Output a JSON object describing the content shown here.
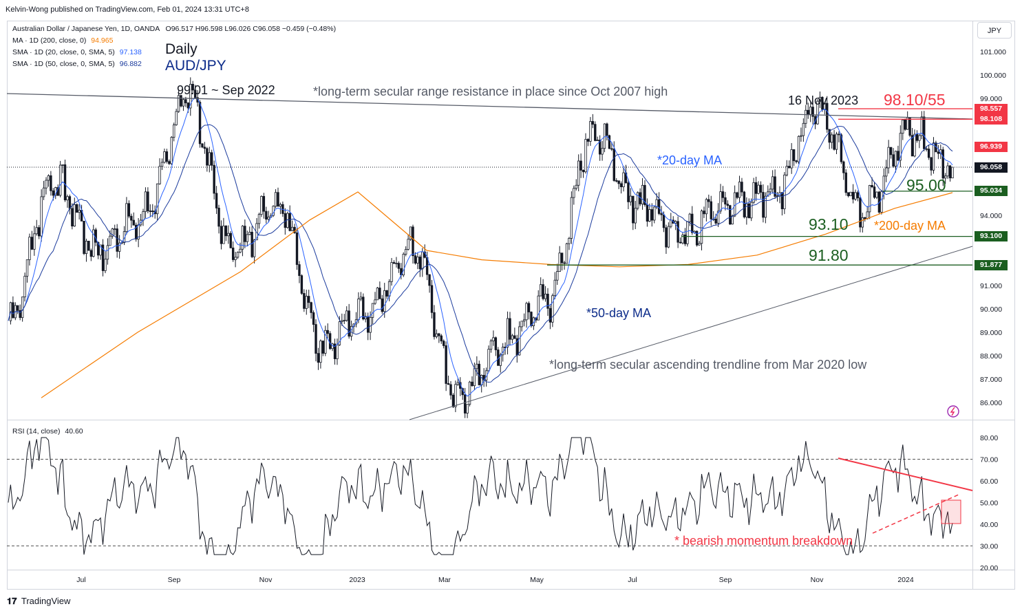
{
  "header": {
    "published_by": "Kelvin-Wong published on TradingView.com, Feb 01, 2024 13:31 UTC+8"
  },
  "legend": {
    "symbol_line": "Australian Dollar / Japanese Yen, 1D, OANDA",
    "ohlc": "O96.517  H96.598  L96.026  C96.058  −0.459 (−0.48%)",
    "ma200_label": "MA · 1D (200, close, 0)",
    "ma200_value": "94.965",
    "sma20_label": "SMA · 1D (20, close, 0, SMA, 5)",
    "sma20_value": "97.138",
    "sma50_label": "SMA · 1D (50, close, 0, SMA, 5)",
    "sma50_value": "96.882",
    "rsi_label": "RSI (14, close)",
    "rsi_value": "40.60"
  },
  "titles": {
    "timeframe": "Daily",
    "pair": "AUD/JPY"
  },
  "annotations": {
    "sep_2022_high": "99.01 ~ Sep 2022",
    "resistance_note": "*long-term secular range resistance in place since Oct 2007 high",
    "nov_2023": "16 Nov 2023",
    "level_9810": "98.10/55",
    "ma20_note": "*20-day MA",
    "level_9500": "95.00",
    "level_9310": "93.10",
    "ma200_note": "*200-day MA",
    "level_9180": "91.80",
    "ma50_note": "*50-day MA",
    "trendline_note": "*long-term secular ascending trendline from Mar 2020 low",
    "rsi_note": "* bearish momentum breakdown"
  },
  "price_axis": {
    "currency": "JPY",
    "ticks": [
      "101.000",
      "100.000",
      "99.000",
      "98.000",
      "97.000",
      "96.000",
      "95.000",
      "94.000",
      "93.000",
      "92.000",
      "91.000",
      "90.000",
      "89.000",
      "88.000",
      "87.000",
      "86.000"
    ],
    "tags": [
      {
        "value": "98.557",
        "color": "#f23645"
      },
      {
        "value": "98.108",
        "color": "#f23645"
      },
      {
        "value": "96.939",
        "color": "#f23645"
      },
      {
        "value": "96.058",
        "color": "#131722"
      },
      {
        "value": "95.034",
        "color": "#1b5e20"
      },
      {
        "value": "93.100",
        "color": "#1b5e20"
      },
      {
        "value": "91.877",
        "color": "#1b5e20"
      }
    ]
  },
  "rsi_axis": {
    "ticks": [
      "80.00",
      "70.00",
      "60.00",
      "50.00",
      "40.00",
      "30.00",
      "20.00"
    ]
  },
  "time_axis": {
    "labels": [
      "Jul",
      "Sep",
      "Nov",
      "2023",
      "Mar",
      "May",
      "Jul",
      "Sep",
      "Nov",
      "2024"
    ]
  },
  "footer": {
    "brand": "TradingView"
  },
  "colors": {
    "candle": "#131722",
    "ma20": "#2962ff",
    "ma50": "#1a3a9c",
    "ma200": "#f57c00",
    "support": "#1b5e20",
    "resistance": "#f23645",
    "rsi_line": "#131722",
    "rsi_trend": "#f23645"
  },
  "chart_data": {
    "type": "candlestick",
    "title": "AUD/JPY Daily",
    "ylim": [
      85.3,
      102.0
    ],
    "horizontal_levels": [
      98.557,
      98.108,
      96.939,
      95.034,
      93.1,
      91.877
    ],
    "current_close": 96.058,
    "ma_series_last": {
      "sma20": 97.138,
      "sma50": 96.882,
      "ma200": 94.965
    },
    "close_path": [
      {
        "t": "2022-05",
        "v": 89.5
      },
      {
        "t": "2022-06",
        "v": 95.5
      },
      {
        "t": "2022-07",
        "v": 92.5
      },
      {
        "t": "2022-08",
        "v": 94.0
      },
      {
        "t": "2022-09",
        "v": 99.01
      },
      {
        "t": "2022-10",
        "v": 92.5
      },
      {
        "t": "2022-11",
        "v": 94.5
      },
      {
        "t": "2022-12",
        "v": 88.5
      },
      {
        "t": "2023-01",
        "v": 90.0
      },
      {
        "t": "2023-02",
        "v": 92.5
      },
      {
        "t": "2023-03",
        "v": 86.2
      },
      {
        "t": "2023-04",
        "v": 88.5
      },
      {
        "t": "2023-05",
        "v": 90.5
      },
      {
        "t": "2023-06",
        "v": 97.5
      },
      {
        "t": "2023-07",
        "v": 94.5
      },
      {
        "t": "2023-08",
        "v": 93.2
      },
      {
        "t": "2023-09",
        "v": 94.5
      },
      {
        "t": "2023-10",
        "v": 95.0
      },
      {
        "t": "2023-11",
        "v": 98.55
      },
      {
        "t": "2023-12",
        "v": 94.3
      },
      {
        "t": "2024-01",
        "v": 97.5
      },
      {
        "t": "2024-02",
        "v": 96.06
      }
    ],
    "rsi": {
      "value": 40.6,
      "overbought": 70,
      "oversold": 30,
      "ylim": [
        20,
        85
      ]
    }
  }
}
